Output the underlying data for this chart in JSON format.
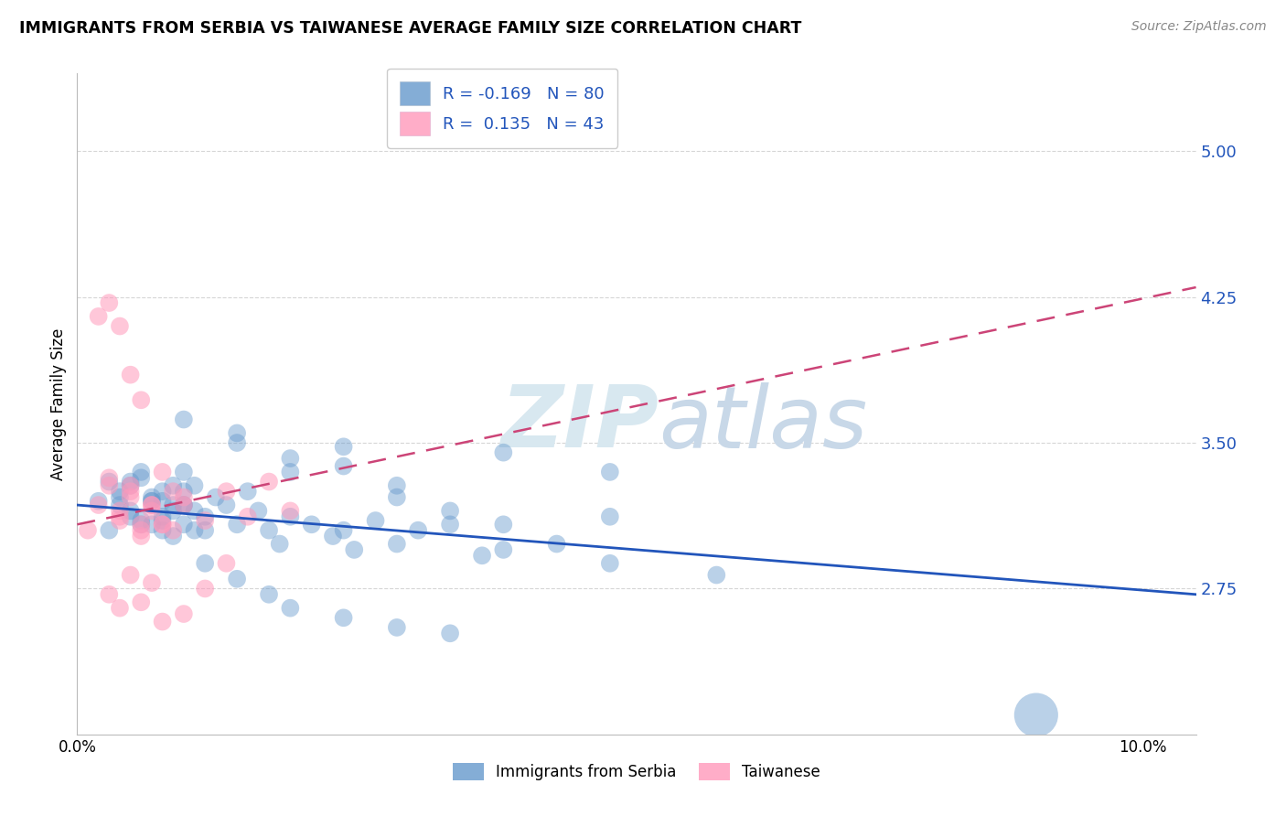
{
  "title": "IMMIGRANTS FROM SERBIA VS TAIWANESE AVERAGE FAMILY SIZE CORRELATION CHART",
  "source": "Source: ZipAtlas.com",
  "ylabel": "Average Family Size",
  "xlim": [
    0.0,
    0.105
  ],
  "ylim": [
    2.0,
    5.4
  ],
  "yticks": [
    2.75,
    3.5,
    4.25,
    5.0
  ],
  "xticks": [
    0.0,
    0.1
  ],
  "xticklabels": [
    "0.0%",
    "10.0%"
  ],
  "color_blue": "#6699CC",
  "color_pink": "#FF99BB",
  "color_trend_blue": "#2255BB",
  "color_trend_pink": "#CC4477",
  "watermark_zip": "ZIP",
  "watermark_atlas": "atlas",
  "watermark_color": "#D8E8F0",
  "blue_trend_x": [
    0.0,
    0.105
  ],
  "blue_trend_y": [
    3.18,
    2.72
  ],
  "pink_trend_x": [
    0.0,
    0.105
  ],
  "pink_trend_y": [
    3.08,
    4.3
  ],
  "serbia_x": [
    0.002,
    0.003,
    0.004,
    0.005,
    0.006,
    0.007,
    0.008,
    0.009,
    0.01,
    0.003,
    0.004,
    0.005,
    0.006,
    0.007,
    0.008,
    0.009,
    0.01,
    0.011,
    0.004,
    0.005,
    0.006,
    0.007,
    0.008,
    0.009,
    0.01,
    0.011,
    0.012,
    0.005,
    0.006,
    0.007,
    0.008,
    0.009,
    0.01,
    0.011,
    0.012,
    0.013,
    0.014,
    0.015,
    0.016,
    0.017,
    0.018,
    0.019,
    0.02,
    0.022,
    0.024,
    0.026,
    0.028,
    0.03,
    0.032,
    0.035,
    0.038,
    0.04,
    0.045,
    0.05,
    0.025,
    0.03,
    0.035,
    0.04,
    0.05,
    0.06,
    0.015,
    0.02,
    0.025,
    0.03,
    0.04,
    0.05,
    0.01,
    0.015,
    0.02,
    0.025,
    0.008,
    0.01,
    0.012,
    0.015,
    0.018,
    0.02,
    0.025,
    0.03,
    0.035,
    0.09
  ],
  "serbia_y": [
    3.2,
    3.3,
    3.25,
    3.15,
    3.35,
    3.2,
    3.1,
    3.28,
    3.18,
    3.05,
    3.22,
    3.12,
    3.32,
    3.08,
    3.25,
    3.15,
    3.35,
    3.05,
    3.18,
    3.28,
    3.08,
    3.22,
    3.12,
    3.02,
    3.25,
    3.15,
    3.05,
    3.3,
    3.1,
    3.2,
    3.05,
    3.18,
    3.08,
    3.28,
    3.12,
    3.22,
    3.18,
    3.08,
    3.25,
    3.15,
    3.05,
    2.98,
    3.12,
    3.08,
    3.02,
    2.95,
    3.1,
    2.98,
    3.05,
    3.15,
    2.92,
    3.08,
    2.98,
    3.12,
    3.05,
    3.22,
    3.08,
    2.95,
    2.88,
    2.82,
    3.5,
    3.42,
    3.38,
    3.28,
    3.45,
    3.35,
    3.62,
    3.55,
    3.35,
    3.48,
    3.2,
    3.18,
    2.88,
    2.8,
    2.72,
    2.65,
    2.6,
    2.55,
    2.52,
    2.1
  ],
  "serbia_sizes": [
    200,
    200,
    200,
    200,
    200,
    200,
    200,
    200,
    200,
    200,
    200,
    200,
    200,
    200,
    200,
    200,
    200,
    200,
    200,
    200,
    200,
    200,
    200,
    200,
    200,
    200,
    200,
    200,
    200,
    200,
    200,
    200,
    200,
    200,
    200,
    200,
    200,
    200,
    200,
    200,
    200,
    200,
    200,
    200,
    200,
    200,
    200,
    200,
    200,
    200,
    200,
    200,
    200,
    200,
    200,
    200,
    200,
    200,
    200,
    200,
    200,
    200,
    200,
    200,
    200,
    200,
    200,
    200,
    200,
    200,
    200,
    200,
    200,
    200,
    200,
    200,
    200,
    200,
    200,
    1200
  ],
  "taiwanese_x": [
    0.001,
    0.002,
    0.003,
    0.004,
    0.005,
    0.006,
    0.007,
    0.008,
    0.003,
    0.004,
    0.005,
    0.006,
    0.007,
    0.008,
    0.009,
    0.01,
    0.004,
    0.005,
    0.006,
    0.007,
    0.008,
    0.009,
    0.01,
    0.012,
    0.014,
    0.016,
    0.018,
    0.02,
    0.002,
    0.003,
    0.004,
    0.005,
    0.006,
    0.003,
    0.004,
    0.005,
    0.006,
    0.007,
    0.008,
    0.01,
    0.012,
    0.014
  ],
  "taiwanese_y": [
    3.05,
    3.18,
    3.28,
    3.1,
    3.22,
    3.02,
    3.15,
    3.08,
    3.32,
    3.15,
    3.25,
    3.08,
    3.18,
    3.35,
    3.05,
    3.22,
    3.12,
    3.28,
    3.05,
    3.18,
    3.08,
    3.25,
    3.18,
    3.1,
    3.25,
    3.12,
    3.3,
    3.15,
    4.15,
    4.22,
    4.1,
    3.85,
    3.72,
    2.72,
    2.65,
    2.82,
    2.68,
    2.78,
    2.58,
    2.62,
    2.75,
    2.88
  ],
  "taiwanese_sizes": [
    200,
    200,
    200,
    200,
    200,
    200,
    200,
    200,
    200,
    200,
    200,
    200,
    200,
    200,
    200,
    200,
    200,
    200,
    200,
    200,
    200,
    200,
    200,
    200,
    200,
    200,
    200,
    200,
    200,
    200,
    200,
    200,
    200,
    200,
    200,
    200,
    200,
    200,
    200,
    200,
    200,
    200
  ]
}
